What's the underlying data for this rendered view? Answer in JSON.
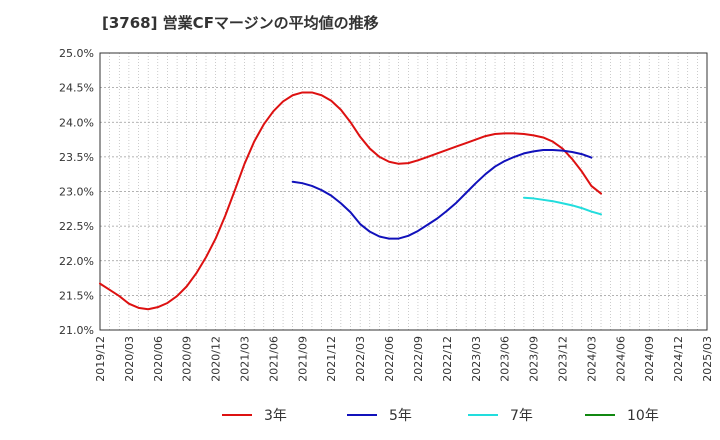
{
  "chart_data": {
    "type": "line",
    "title": "[3768]  営業CFマージンの平均値の推移",
    "xlabel": "",
    "ylabel": "",
    "ylim": [
      21.0,
      25.0
    ],
    "y_ticks": [
      "21.0%",
      "21.5%",
      "22.0%",
      "22.5%",
      "23.0%",
      "23.5%",
      "24.0%",
      "24.5%",
      "25.0%"
    ],
    "x_ticks": [
      "2019/12",
      "2020/03",
      "2020/06",
      "2020/09",
      "2020/12",
      "2021/03",
      "2021/06",
      "2021/09",
      "2021/12",
      "2022/03",
      "2022/06",
      "2022/09",
      "2022/12",
      "2023/03",
      "2023/06",
      "2023/09",
      "2023/12",
      "2024/03",
      "2024/06",
      "2024/09",
      "2024/12",
      "2025/03"
    ],
    "x_range": [
      "2019/12",
      "2025/03"
    ],
    "grid": true,
    "legend_position": "bottom",
    "series": [
      {
        "name": "3年",
        "color": "#dd1111",
        "points": [
          [
            "2019/12",
            21.67
          ],
          [
            "2020/01",
            21.58
          ],
          [
            "2020/02",
            21.49
          ],
          [
            "2020/03",
            21.38
          ],
          [
            "2020/04",
            21.32
          ],
          [
            "2020/05",
            21.3
          ],
          [
            "2020/06",
            21.33
          ],
          [
            "2020/07",
            21.39
          ],
          [
            "2020/08",
            21.49
          ],
          [
            "2020/09",
            21.63
          ],
          [
            "2020/10",
            21.82
          ],
          [
            "2020/11",
            22.05
          ],
          [
            "2020/12",
            22.32
          ],
          [
            "2021/01",
            22.65
          ],
          [
            "2021/02",
            23.02
          ],
          [
            "2021/03",
            23.4
          ],
          [
            "2021/04",
            23.72
          ],
          [
            "2021/05",
            23.97
          ],
          [
            "2021/06",
            24.16
          ],
          [
            "2021/07",
            24.3
          ],
          [
            "2021/08",
            24.39
          ],
          [
            "2021/09",
            24.43
          ],
          [
            "2021/10",
            24.43
          ],
          [
            "2021/11",
            24.39
          ],
          [
            "2021/12",
            24.31
          ],
          [
            "2022/01",
            24.18
          ],
          [
            "2022/02",
            24.0
          ],
          [
            "2022/03",
            23.79
          ],
          [
            "2022/04",
            23.62
          ],
          [
            "2022/05",
            23.5
          ],
          [
            "2022/06",
            23.43
          ],
          [
            "2022/07",
            23.4
          ],
          [
            "2022/08",
            23.41
          ],
          [
            "2022/09",
            23.45
          ],
          [
            "2022/10",
            23.5
          ],
          [
            "2022/11",
            23.55
          ],
          [
            "2022/12",
            23.6
          ],
          [
            "2023/01",
            23.65
          ],
          [
            "2023/02",
            23.7
          ],
          [
            "2023/03",
            23.75
          ],
          [
            "2023/04",
            23.8
          ],
          [
            "2023/05",
            23.83
          ],
          [
            "2023/06",
            23.84
          ],
          [
            "2023/07",
            23.84
          ],
          [
            "2023/08",
            23.83
          ],
          [
            "2023/09",
            23.81
          ],
          [
            "2023/10",
            23.78
          ],
          [
            "2023/11",
            23.72
          ],
          [
            "2023/12",
            23.62
          ],
          [
            "2024/01",
            23.47
          ],
          [
            "2024/02",
            23.29
          ],
          [
            "2024/03",
            23.08
          ],
          [
            "2024/04",
            22.97
          ]
        ]
      },
      {
        "name": "5年",
        "color": "#1111bb",
        "points": [
          [
            "2021/08",
            23.14
          ],
          [
            "2021/09",
            23.12
          ],
          [
            "2021/10",
            23.08
          ],
          [
            "2021/11",
            23.02
          ],
          [
            "2021/12",
            22.94
          ],
          [
            "2022/01",
            22.83
          ],
          [
            "2022/02",
            22.7
          ],
          [
            "2022/03",
            22.53
          ],
          [
            "2022/04",
            22.42
          ],
          [
            "2022/05",
            22.35
          ],
          [
            "2022/06",
            22.32
          ],
          [
            "2022/07",
            22.32
          ],
          [
            "2022/08",
            22.36
          ],
          [
            "2022/09",
            22.43
          ],
          [
            "2022/10",
            22.52
          ],
          [
            "2022/11",
            22.61
          ],
          [
            "2022/12",
            22.72
          ],
          [
            "2023/01",
            22.84
          ],
          [
            "2023/02",
            22.98
          ],
          [
            "2023/03",
            23.12
          ],
          [
            "2023/04",
            23.25
          ],
          [
            "2023/05",
            23.36
          ],
          [
            "2023/06",
            23.44
          ],
          [
            "2023/07",
            23.5
          ],
          [
            "2023/08",
            23.55
          ],
          [
            "2023/09",
            23.58
          ],
          [
            "2023/10",
            23.6
          ],
          [
            "2023/11",
            23.6
          ],
          [
            "2023/12",
            23.59
          ],
          [
            "2024/01",
            23.57
          ],
          [
            "2024/02",
            23.54
          ],
          [
            "2024/03",
            23.49
          ]
        ]
      },
      {
        "name": "7年",
        "color": "#22dddd",
        "points": [
          [
            "2023/08",
            22.91
          ],
          [
            "2023/09",
            22.9
          ],
          [
            "2023/10",
            22.88
          ],
          [
            "2023/11",
            22.86
          ],
          [
            "2023/12",
            22.83
          ],
          [
            "2024/01",
            22.8
          ],
          [
            "2024/02",
            22.76
          ],
          [
            "2024/03",
            22.71
          ],
          [
            "2024/04",
            22.67
          ]
        ]
      },
      {
        "name": "10年",
        "color": "#118811",
        "points": []
      }
    ]
  }
}
